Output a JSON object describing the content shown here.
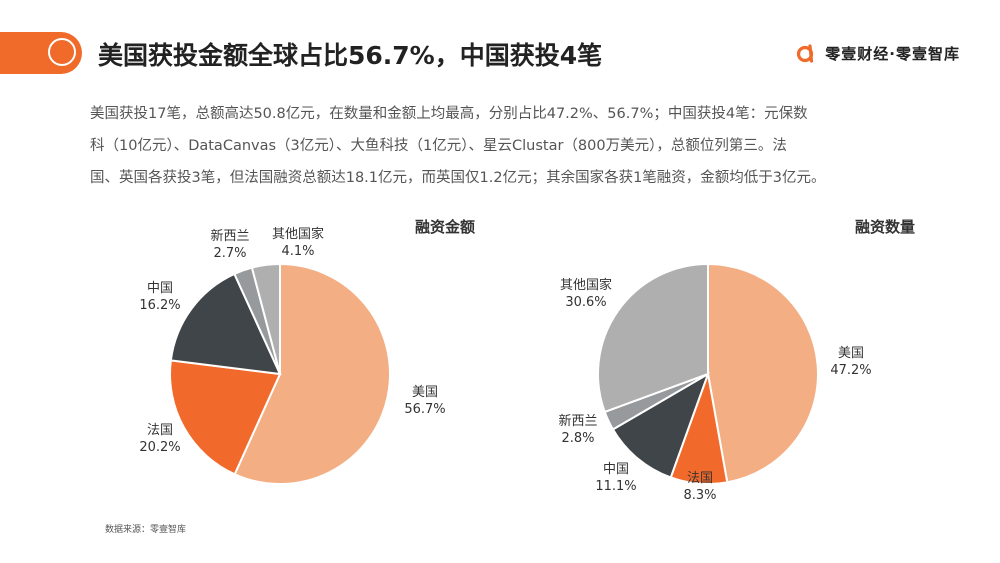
{
  "header": {
    "title": "美国获投金额全球占比56.7%，中国获投4笔",
    "brand": "零壹财经·零壹智库"
  },
  "summary": {
    "lines": [
      "美国获投17笔，总额高达50.8亿元，在数量和金额上均最高，分别占比47.2%、56.7%；中国获投4笔：元保数",
      "科（10亿元）、DataCanvas（3亿元）、大鱼科技（1亿元）、星云Clustar（800万美元），总额位列第三。法",
      "国、英国各获投3笔，但法国融资总额达18.1亿元，而英国仅1.2亿元；其余国家各获1笔融资，金额均低于3亿元。"
    ]
  },
  "source": "数据来源：零壹智库",
  "colors": {
    "accent": "#f06a2a",
    "美国": "#f4ae83",
    "法国": "#f26a2b",
    "中国": "#404549",
    "新西兰": "#979a9c",
    "其他国家": "#afafaf"
  },
  "chart_data": [
    {
      "type": "pie",
      "title": "融资金额",
      "slices": [
        {
          "label": "美国",
          "value": 56.7,
          "pct": "56.7%"
        },
        {
          "label": "法国",
          "value": 20.2,
          "pct": "20.2%"
        },
        {
          "label": "中国",
          "value": 16.2,
          "pct": "16.2%"
        },
        {
          "label": "新西兰",
          "value": 2.7,
          "pct": "2.7%"
        },
        {
          "label": "其他国家",
          "value": 4.1,
          "pct": "4.1%"
        }
      ]
    },
    {
      "type": "pie",
      "title": "融资数量",
      "slices": [
        {
          "label": "美国",
          "value": 47.2,
          "pct": "47.2%"
        },
        {
          "label": "法国",
          "value": 8.3,
          "pct": "8.3%"
        },
        {
          "label": "中国",
          "value": 11.1,
          "pct": "11.1%"
        },
        {
          "label": "新西兰",
          "value": 2.8,
          "pct": "2.8%"
        },
        {
          "label": "其他国家",
          "value": 30.6,
          "pct": "30.6%"
        }
      ]
    }
  ]
}
